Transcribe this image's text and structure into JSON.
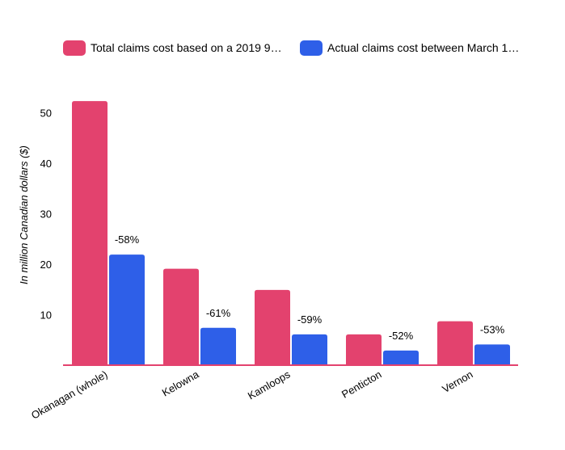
{
  "chart_data": {
    "type": "bar",
    "categories": [
      "Okanagan (whole)",
      "Kelowna",
      "Kamloops",
      "Penticton",
      "Vernon"
    ],
    "series": [
      {
        "name": "Total claims cost based on a 2019 9…",
        "color": "#e3426e",
        "values": [
          52.3,
          19.1,
          14.9,
          6.1,
          8.7
        ]
      },
      {
        "name": "Actual claims cost between March 1…",
        "color": "#2e5fe8",
        "values": [
          21.9,
          7.4,
          6.1,
          2.9,
          4.1
        ]
      }
    ],
    "data_labels": [
      "-58%",
      "-61%",
      "-59%",
      "-52%",
      "-53%"
    ],
    "title": "",
    "xlabel": "",
    "ylabel": "In million Canadian dollars ($)",
    "ylim": [
      0,
      55
    ],
    "yticks": [
      10,
      20,
      30,
      40,
      50
    ],
    "grid": false,
    "legend_position": "top",
    "axis_color": "#e3426e"
  }
}
